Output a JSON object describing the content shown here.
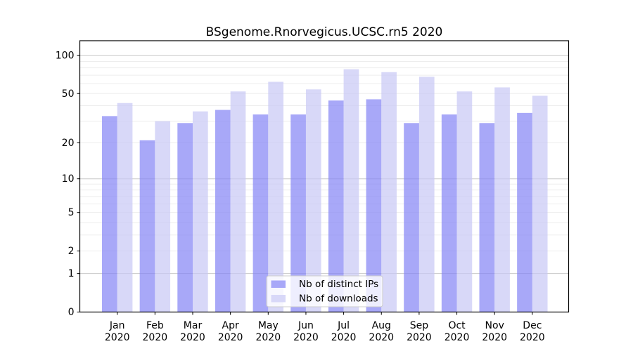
{
  "chart_data": {
    "type": "bar",
    "title": "BSgenome.Rnorvegicus.UCSC.rn5 2020",
    "scale": "log1p",
    "months": [
      "Jan",
      "Feb",
      "Mar",
      "Apr",
      "May",
      "Jun",
      "Jul",
      "Aug",
      "Sep",
      "Oct",
      "Nov",
      "Dec"
    ],
    "year": "2020",
    "series": [
      {
        "key": "distinct-ips",
        "name": "Nb of distinct IPs",
        "color": "#8383f5",
        "alpha": 0.7,
        "values": [
          33,
          21,
          29,
          37,
          34,
          34,
          44,
          45,
          29,
          34,
          29,
          35
        ]
      },
      {
        "key": "downloads",
        "name": "Nb of downloads",
        "color": "#c7c7f5",
        "alpha": 0.7,
        "values": [
          42,
          30,
          36,
          52,
          62,
          54,
          78,
          74,
          68,
          52,
          56,
          48
        ]
      }
    ],
    "yticks": [
      0,
      1,
      2,
      5,
      10,
      20,
      50,
      100
    ],
    "major_gridlines": [
      1,
      10,
      100
    ],
    "minor_gridlines": [
      2,
      3,
      4,
      5,
      6,
      7,
      8,
      9,
      20,
      30,
      40,
      50,
      60,
      70,
      80,
      90
    ],
    "ylim": [
      0,
      131
    ],
    "grid": true,
    "legend_position": "lower center",
    "colors": {
      "major_grid": "#c8c8c8",
      "minor_grid": "#ededed",
      "spine": "#000000",
      "legend_border": "#cccccc",
      "legend_bg": "rgba(255,255,255,0.8)"
    }
  }
}
